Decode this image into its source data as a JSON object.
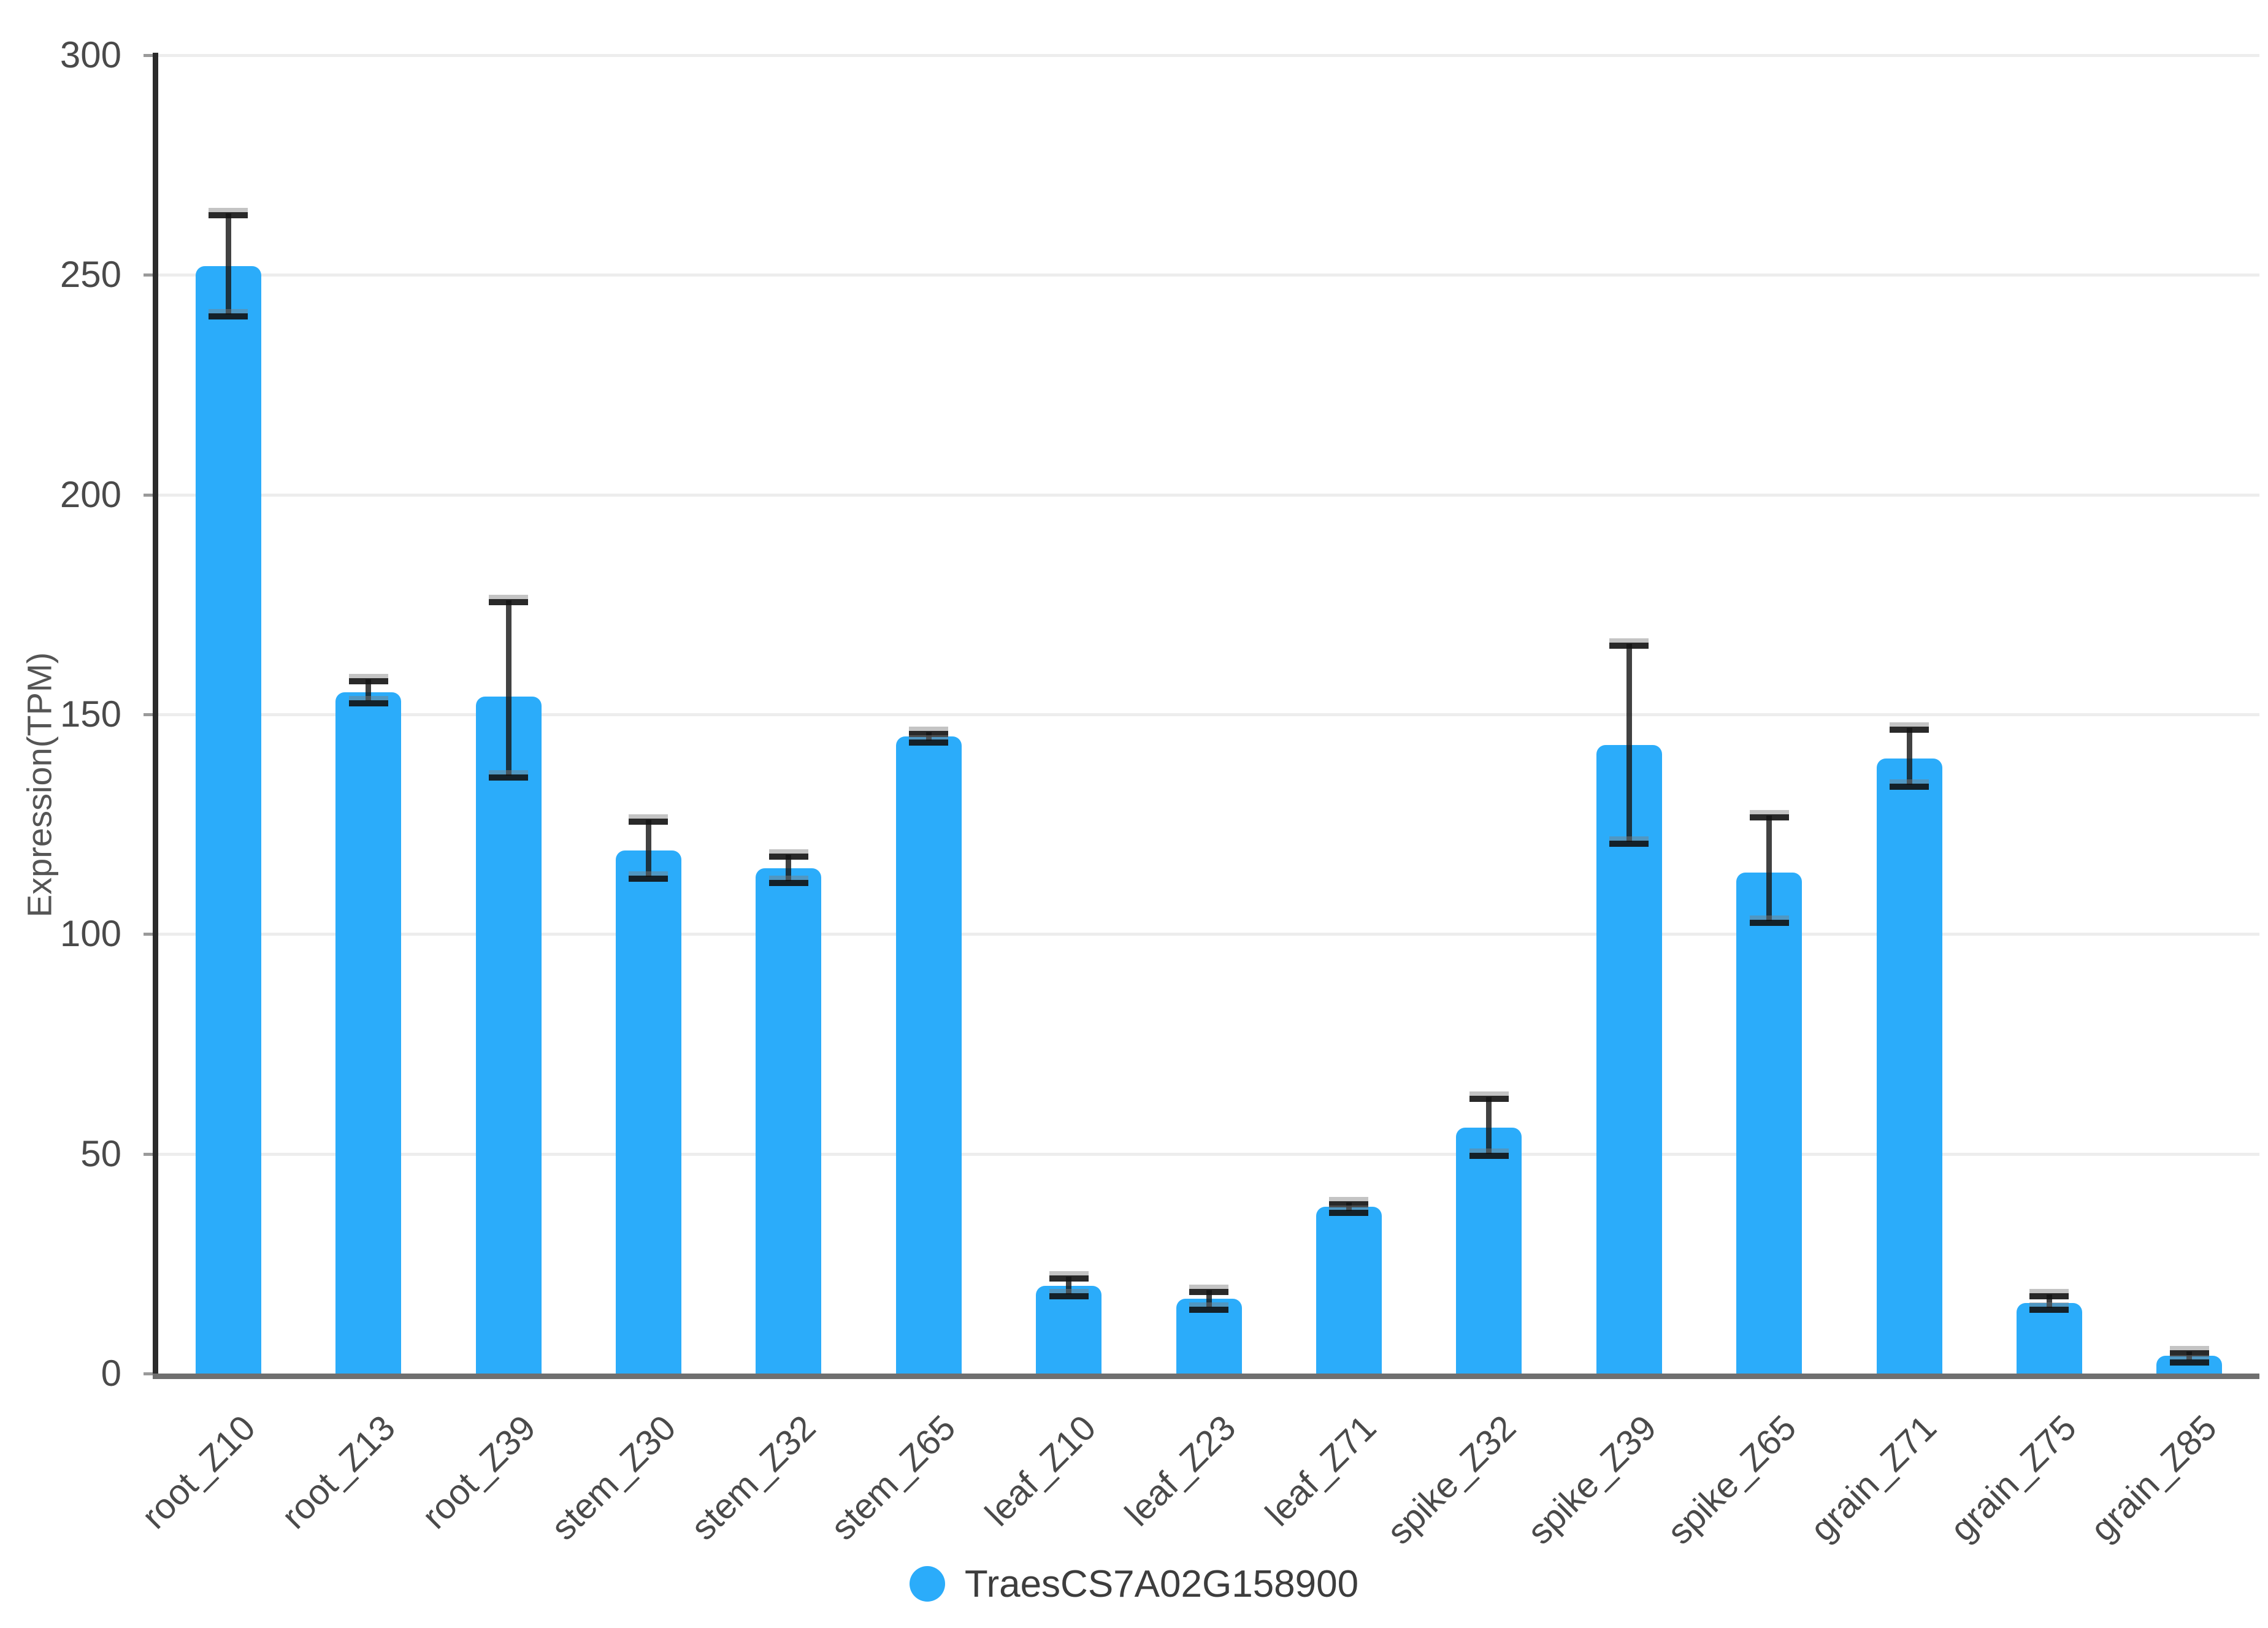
{
  "chart_data": {
    "type": "bar",
    "title": "",
    "xlabel": "",
    "ylabel": "Expression(TPM)",
    "ylim": [
      0,
      300
    ],
    "yticks": [
      0,
      50,
      100,
      150,
      200,
      250,
      300
    ],
    "grid": true,
    "legend_position": "bottom-center",
    "categories": [
      "root_Z10",
      "root_Z13",
      "root_Z39",
      "stem_Z30",
      "stem_Z32",
      "stem_Z65",
      "leaf_Z10",
      "leaf_Z23",
      "leaf_Z71",
      "spike_Z32",
      "spike_Z39",
      "spike_Z65",
      "grain_Z71",
      "grain_Z75",
      "grain_Z85"
    ],
    "series": [
      {
        "name": "TraesCS7A02G158900",
        "color": "#2BACFA",
        "values": [
          252,
          155,
          154,
          119,
          115,
          145,
          20,
          17,
          38,
          56,
          143,
          114,
          140,
          16,
          4
        ],
        "error_low": [
          241,
          153,
          136,
          113,
          112,
          144,
          18,
          15,
          37,
          50,
          121,
          103,
          134,
          15,
          3
        ],
        "error_high": [
          264,
          158,
          176,
          126,
          118,
          146,
          22,
          19,
          39,
          63,
          166,
          127,
          147,
          18,
          5
        ]
      }
    ]
  },
  "legend": {
    "items": [
      {
        "label": "TraesCS7A02G158900",
        "marker": "circle-icon",
        "color": "#2BACFA"
      }
    ]
  },
  "colors": {
    "background": "#FFFFFF",
    "bar": "#2BACFA",
    "error_bar": "#1A1A1A",
    "gridline": "#EDEDED",
    "baseline": "#6F6F6F",
    "y_axis_line": "#2B2B2B",
    "tick_text": "#4A4A4A",
    "axis_title_text": "#555555",
    "legend_text": "#3D3D3D"
  }
}
